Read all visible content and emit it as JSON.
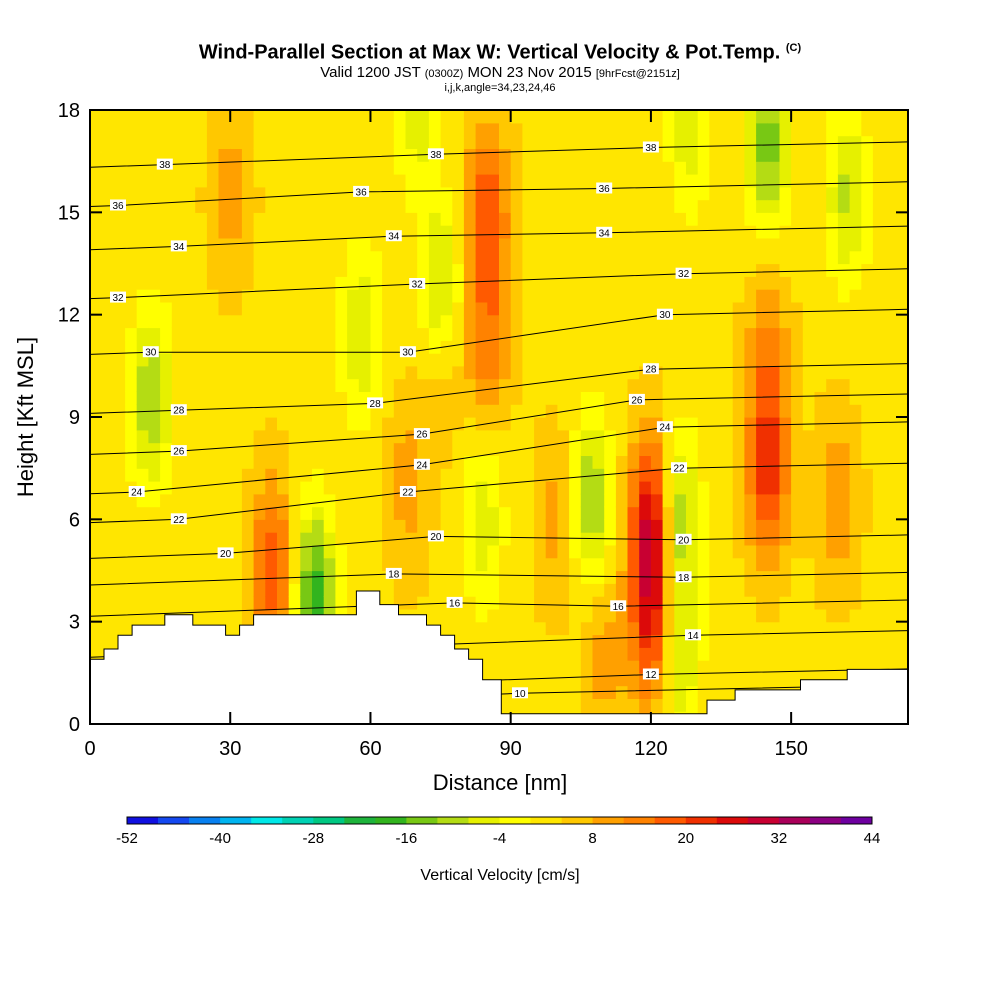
{
  "header": {
    "title": "Wind-Parallel Section at Max W: Vertical Velocity & Pot.Temp.",
    "copyright": "(C)",
    "valid_prefix": "Valid 1200 JST",
    "valid_utc": "(0300Z)",
    "valid_date": "MON 23 Nov 2015",
    "forecast": "[9hrFcst@2151z]",
    "indices": "i,j,k,angle=34,23,24,46"
  },
  "chart_data": {
    "type": "heatmap",
    "xlabel": "Distance [nm]",
    "ylabel": "Height [Kft MSL]",
    "xlim": [
      0,
      175
    ],
    "ylim": [
      0,
      18
    ],
    "x_ticks": [
      0,
      30,
      60,
      90,
      120,
      150
    ],
    "y_ticks": [
      0,
      3,
      6,
      9,
      12,
      15,
      18
    ],
    "colorbar": {
      "title": "Vertical Velocity [cm/s]",
      "tick_labels": [
        "-52",
        "-40",
        "-28",
        "-16",
        "-4",
        "8",
        "20",
        "32",
        "44"
      ],
      "tick_values": [
        -52,
        -40,
        -28,
        -16,
        -4,
        8,
        20,
        32,
        44
      ],
      "colors": [
        "#1010e0",
        "#1448f0",
        "#0880f0",
        "#00b4f0",
        "#00e8e8",
        "#00d2b4",
        "#00c882",
        "#1eb43c",
        "#32b41e",
        "#78c814",
        "#b4dc14",
        "#e6f000",
        "#ffff00",
        "#ffe600",
        "#ffc800",
        "#ffa000",
        "#ff8200",
        "#ff5a00",
        "#f03000",
        "#dc0a0a",
        "#c80032",
        "#aa005a",
        "#8c0082",
        "#6e00a0"
      ]
    },
    "background_value": 3,
    "velocity_cells": [
      {
        "x": 85,
        "y": 15,
        "value": 20
      },
      {
        "x": 85,
        "y": 11,
        "value": 14
      },
      {
        "x": 120,
        "y": 6,
        "value": 26
      },
      {
        "x": 120,
        "y": 3,
        "value": 22
      },
      {
        "x": 145,
        "y": 7.5,
        "value": 22
      },
      {
        "x": 145,
        "y": 11,
        "value": 12
      },
      {
        "x": 39,
        "y": 4.5,
        "value": 20
      },
      {
        "x": 75,
        "y": 11,
        "value": 12
      },
      {
        "x": 68,
        "y": 7,
        "value": 10
      },
      {
        "x": 30,
        "y": 15.5,
        "value": 10
      },
      {
        "x": 100,
        "y": 6,
        "value": 10
      },
      {
        "x": 160,
        "y": 6.5,
        "value": 11
      },
      {
        "x": 110,
        "y": 2,
        "value": 10
      },
      {
        "x": 48,
        "y": 3.8,
        "value": -18
      },
      {
        "x": 75,
        "y": 12.5,
        "value": -14
      },
      {
        "x": 126,
        "y": 6,
        "value": -12
      },
      {
        "x": 126,
        "y": 2,
        "value": -8
      },
      {
        "x": 107,
        "y": 6.5,
        "value": -12
      },
      {
        "x": 145,
        "y": 17,
        "value": -14
      },
      {
        "x": 162,
        "y": 15.5,
        "value": -9
      },
      {
        "x": 13,
        "y": 9.5,
        "value": -12
      },
      {
        "x": 58,
        "y": 11.5,
        "value": -8
      },
      {
        "x": 84,
        "y": 6,
        "value": -7
      },
      {
        "x": 70,
        "y": 18,
        "value": -6
      },
      {
        "x": 128,
        "y": 17.5,
        "value": -6
      }
    ],
    "terrain": {
      "x": [
        0,
        3,
        3,
        6,
        6,
        9,
        9,
        16,
        16,
        22,
        22,
        29,
        29,
        32,
        32,
        35,
        35,
        57,
        57,
        62,
        62,
        66,
        66,
        72,
        72,
        75,
        75,
        78,
        78,
        81,
        81,
        84,
        84,
        88,
        88,
        132,
        132,
        138,
        138,
        152,
        152,
        162,
        162,
        175
      ],
      "y": [
        1.9,
        1.9,
        2.2,
        2.2,
        2.6,
        2.6,
        2.9,
        2.9,
        3.2,
        3.2,
        2.9,
        2.9,
        2.6,
        2.6,
        2.9,
        2.9,
        3.2,
        3.2,
        3.9,
        3.9,
        3.5,
        3.5,
        3.2,
        3.2,
        2.9,
        2.9,
        2.6,
        2.6,
        2.2,
        2.2,
        1.9,
        1.9,
        1.3,
        1.3,
        0.3,
        0.3,
        0.7,
        0.7,
        1.0,
        1.0,
        1.3,
        1.3,
        1.6,
        1.6
      ]
    },
    "contours": [
      {
        "theta": "10",
        "label_at": [
          92,
          0.9
        ]
      },
      {
        "theta": "12",
        "label_at": [
          120,
          1.45
        ]
      },
      {
        "theta": "14",
        "label_at": [
          129,
          2.6
        ]
      },
      {
        "theta": "16",
        "label_at": [
          78,
          3.55
        ]
      },
      {
        "theta": "16",
        "label_at": [
          113,
          3.45
        ]
      },
      {
        "theta": "18",
        "label_at": [
          65,
          4.4
        ]
      },
      {
        "theta": "18",
        "label_at": [
          127,
          4.3
        ]
      },
      {
        "theta": "20",
        "label_at": [
          29,
          5.0
        ]
      },
      {
        "theta": "20",
        "label_at": [
          74,
          5.5
        ]
      },
      {
        "theta": "20",
        "label_at": [
          127,
          5.4
        ]
      },
      {
        "theta": "22",
        "label_at": [
          19,
          6.0
        ]
      },
      {
        "theta": "22",
        "label_at": [
          68,
          6.8
        ]
      },
      {
        "theta": "22",
        "label_at": [
          126,
          7.5
        ]
      },
      {
        "theta": "24",
        "label_at": [
          10,
          6.8
        ]
      },
      {
        "theta": "24",
        "label_at": [
          71,
          7.6
        ]
      },
      {
        "theta": "24",
        "label_at": [
          123,
          8.7
        ]
      },
      {
        "theta": "26",
        "label_at": [
          19,
          8.0
        ]
      },
      {
        "theta": "26",
        "label_at": [
          71,
          8.5
        ]
      },
      {
        "theta": "26",
        "label_at": [
          117,
          9.5
        ]
      },
      {
        "theta": "28",
        "label_at": [
          19,
          9.2
        ]
      },
      {
        "theta": "28",
        "label_at": [
          61,
          9.4
        ]
      },
      {
        "theta": "28",
        "label_at": [
          120,
          10.4
        ]
      },
      {
        "theta": "30",
        "label_at": [
          13,
          10.9
        ]
      },
      {
        "theta": "30",
        "label_at": [
          68,
          10.9
        ]
      },
      {
        "theta": "30",
        "label_at": [
          123,
          12.0
        ]
      },
      {
        "theta": "32",
        "label_at": [
          6,
          12.5
        ]
      },
      {
        "theta": "32",
        "label_at": [
          70,
          12.9
        ]
      },
      {
        "theta": "32",
        "label_at": [
          127,
          13.2
        ]
      },
      {
        "theta": "34",
        "label_at": [
          19,
          14.0
        ]
      },
      {
        "theta": "34",
        "label_at": [
          65,
          14.3
        ]
      },
      {
        "theta": "34",
        "label_at": [
          110,
          14.4
        ]
      },
      {
        "theta": "36",
        "label_at": [
          6,
          15.2
        ]
      },
      {
        "theta": "36",
        "label_at": [
          58,
          15.6
        ]
      },
      {
        "theta": "36",
        "label_at": [
          110,
          15.7
        ]
      },
      {
        "theta": "38",
        "label_at": [
          16,
          16.4
        ]
      },
      {
        "theta": "38",
        "label_at": [
          74,
          16.7
        ]
      },
      {
        "theta": "38",
        "label_at": [
          120,
          16.9
        ]
      }
    ]
  }
}
